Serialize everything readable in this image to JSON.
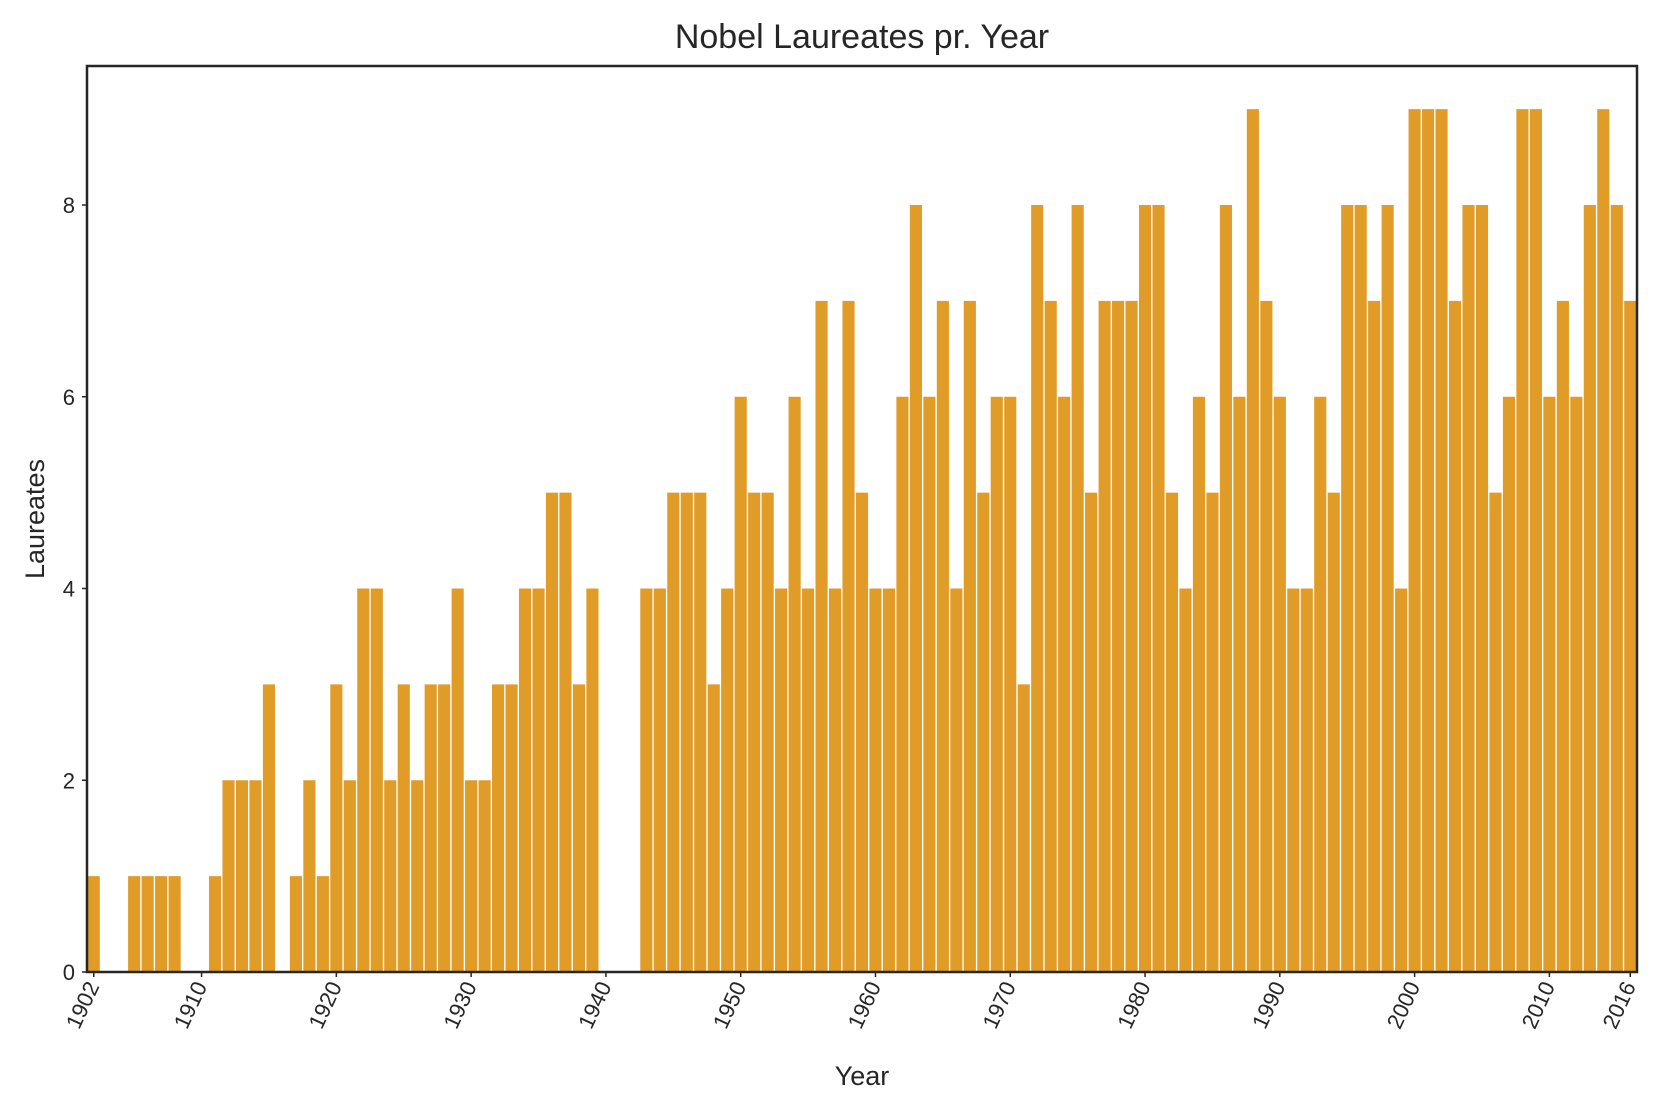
{
  "chart_data": {
    "type": "bar",
    "title": "Nobel Laureates pr. Year",
    "xlabel": "Year",
    "ylabel": "Laureates",
    "x": [
      1902,
      1903,
      1904,
      1905,
      1906,
      1907,
      1908,
      1909,
      1910,
      1911,
      1912,
      1913,
      1914,
      1915,
      1916,
      1917,
      1918,
      1919,
      1920,
      1921,
      1922,
      1923,
      1924,
      1925,
      1926,
      1927,
      1928,
      1929,
      1930,
      1931,
      1932,
      1933,
      1934,
      1935,
      1936,
      1937,
      1938,
      1939,
      1940,
      1941,
      1942,
      1943,
      1944,
      1945,
      1946,
      1947,
      1948,
      1949,
      1950,
      1951,
      1952,
      1953,
      1954,
      1955,
      1956,
      1957,
      1958,
      1959,
      1960,
      1961,
      1962,
      1963,
      1964,
      1965,
      1966,
      1967,
      1968,
      1969,
      1970,
      1971,
      1972,
      1973,
      1974,
      1975,
      1976,
      1977,
      1978,
      1979,
      1980,
      1981,
      1982,
      1983,
      1984,
      1985,
      1986,
      1987,
      1988,
      1989,
      1990,
      1991,
      1992,
      1993,
      1994,
      1995,
      1996,
      1997,
      1998,
      1999,
      2000,
      2001,
      2002,
      2003,
      2004,
      2005,
      2006,
      2007,
      2008,
      2009,
      2010,
      2011,
      2012,
      2013,
      2014,
      2015,
      2016
    ],
    "values": [
      1,
      0,
      0,
      1,
      1,
      1,
      1,
      0,
      0,
      1,
      2,
      2,
      2,
      3,
      0,
      1,
      2,
      1,
      3,
      2,
      4,
      4,
      2,
      3,
      2,
      3,
      3,
      4,
      2,
      2,
      3,
      3,
      4,
      4,
      5,
      5,
      3,
      4,
      0,
      0,
      0,
      4,
      4,
      5,
      5,
      5,
      3,
      4,
      6,
      5,
      5,
      4,
      6,
      4,
      7,
      4,
      7,
      5,
      4,
      4,
      6,
      8,
      6,
      7,
      4,
      7,
      5,
      6,
      6,
      3,
      8,
      7,
      6,
      8,
      5,
      7,
      7,
      7,
      8,
      8,
      5,
      4,
      6,
      5,
      8,
      6,
      9,
      7,
      6,
      4,
      4,
      6,
      5,
      8,
      8,
      7,
      8,
      4,
      9,
      9,
      9,
      7,
      8,
      8,
      5,
      6,
      9,
      9,
      6,
      7,
      6,
      8,
      9,
      8,
      7
    ],
    "color": "#e09c27",
    "xlim": [
      1901.5,
      2016.5
    ],
    "xticks": [
      1902,
      1910,
      1920,
      1930,
      1940,
      1950,
      1960,
      1970,
      1980,
      1990,
      2000,
      2010,
      2016
    ],
    "ylim": [
      0,
      9.45
    ],
    "yticks": [
      0,
      2,
      4,
      6,
      8
    ]
  }
}
